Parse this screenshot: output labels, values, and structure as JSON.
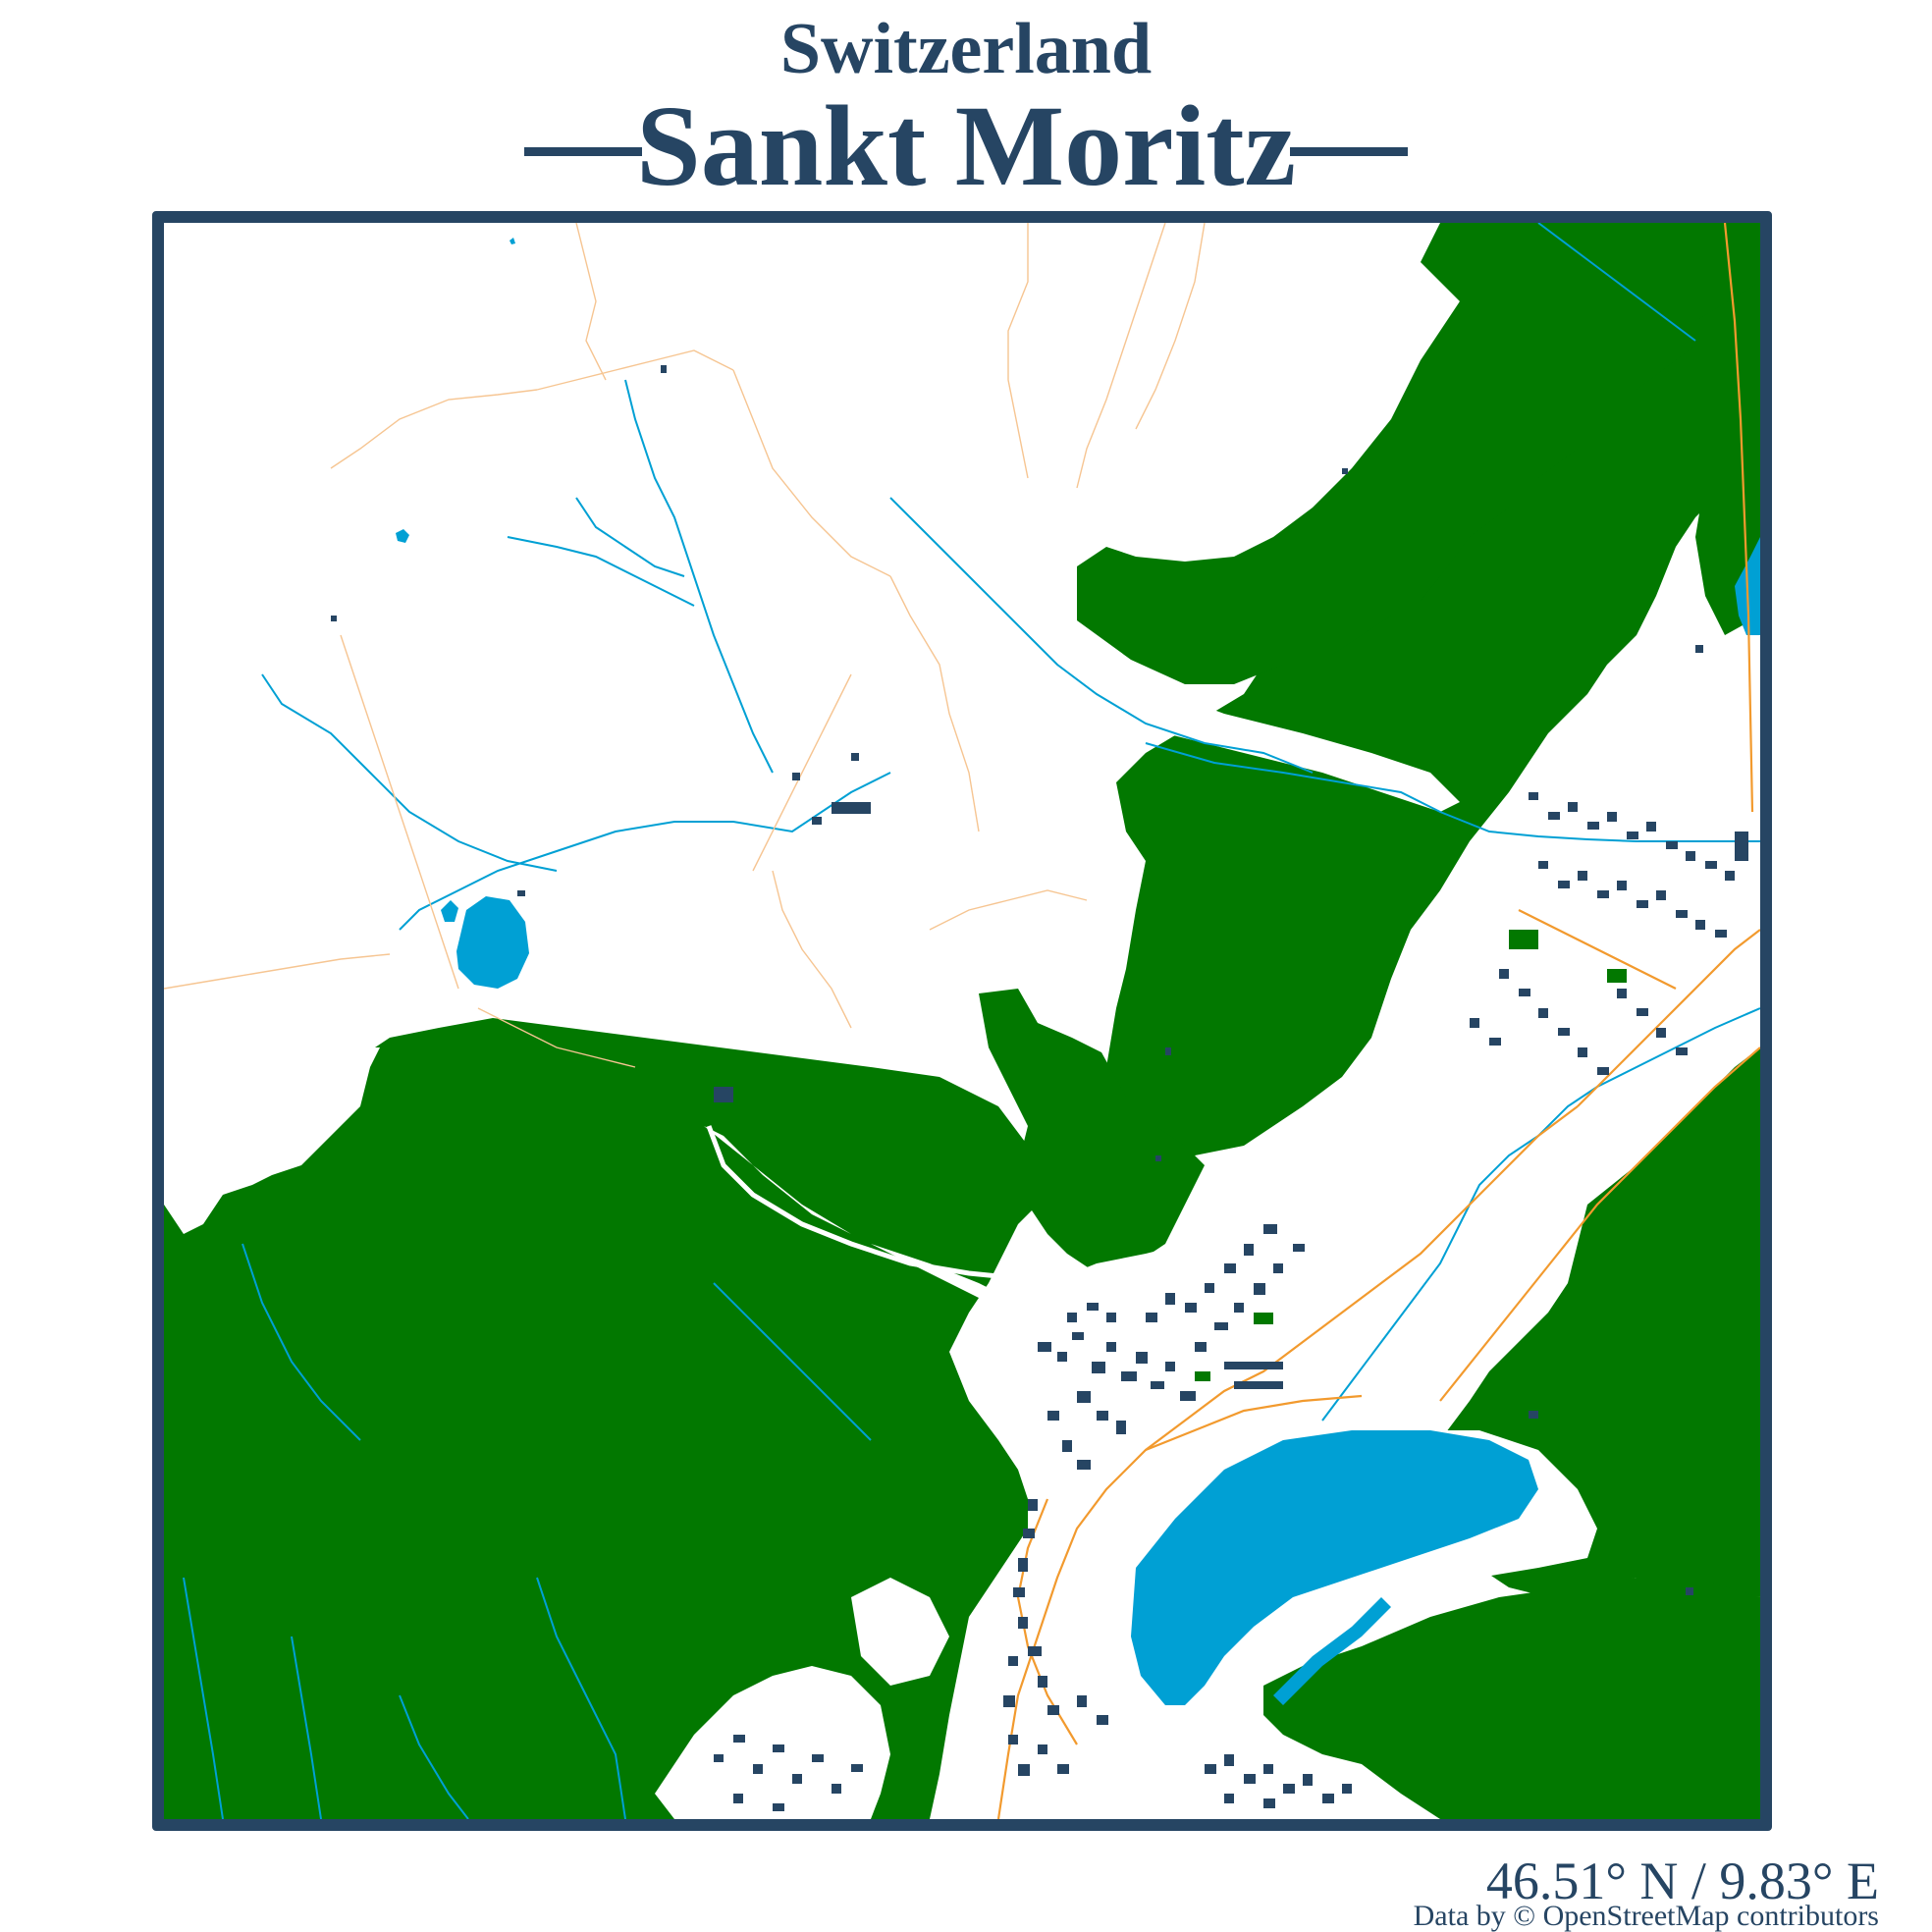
{
  "map": {
    "country": "Switzerland",
    "city": "Sankt Moritz",
    "coordinates": "46.51° N / 9.83° E",
    "attribution": "Data by © OpenStreetMap contributors"
  },
  "colors": {
    "frame": "#264563",
    "forest": "#027800",
    "water": "#00a0d4",
    "buildings": "#264563",
    "roads": "#f29a2e",
    "paths": "#f6c592",
    "background": "#ffffff"
  }
}
